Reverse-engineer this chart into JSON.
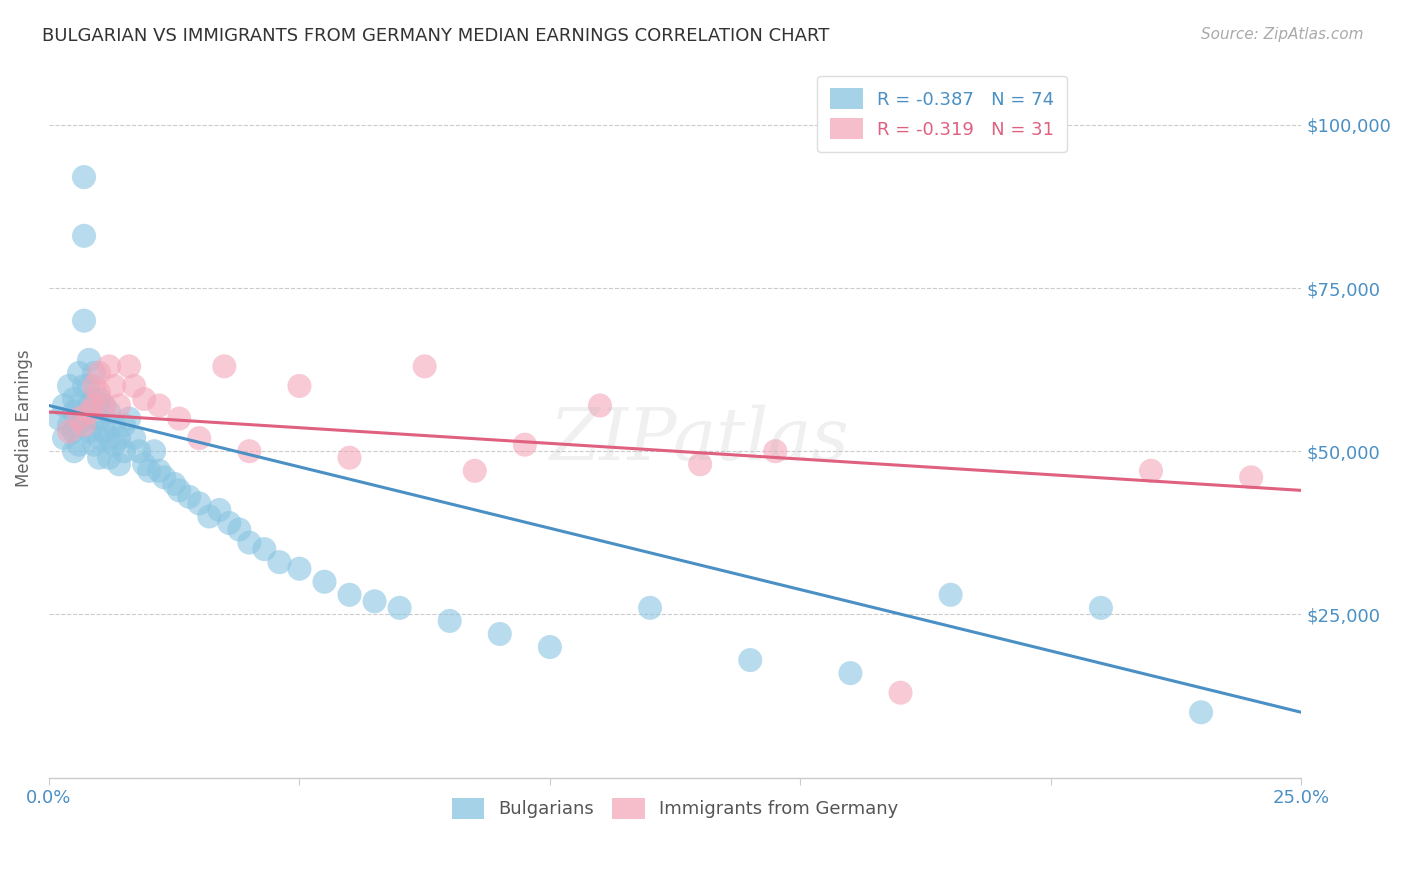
{
  "title": "BULGARIAN VS IMMIGRANTS FROM GERMANY MEDIAN EARNINGS CORRELATION CHART",
  "source": "Source: ZipAtlas.com",
  "ylabel": "Median Earnings",
  "watermark": "ZIPatlas",
  "xlim": [
    0.0,
    0.25
  ],
  "ylim": [
    0,
    110000
  ],
  "yticks": [
    0,
    25000,
    50000,
    75000,
    100000
  ],
  "ytick_labels_right": [
    "",
    "$25,000",
    "$50,000",
    "$75,000",
    "$100,000"
  ],
  "xticks": [
    0.0,
    0.05,
    0.1,
    0.15,
    0.2,
    0.25
  ],
  "xtick_labels": [
    "0.0%",
    "",
    "",
    "",
    "",
    "25.0%"
  ],
  "grid_color": "#cccccc",
  "background_color": "#ffffff",
  "blue_color": "#89c4e1",
  "pink_color": "#f4a7b9",
  "blue_line_color": "#4a90c4",
  "pink_line_color": "#e06080",
  "axis_color": "#4a90c4",
  "legend_blue_label": "R = -0.387   N = 74",
  "legend_pink_label": "R = -0.319   N = 31",
  "bulgarians_label": "Bulgarians",
  "immigrants_label": "Immigrants from Germany",
  "blue_scatter_x": [
    0.002,
    0.003,
    0.003,
    0.004,
    0.004,
    0.005,
    0.005,
    0.005,
    0.005,
    0.006,
    0.006,
    0.006,
    0.006,
    0.007,
    0.007,
    0.007,
    0.007,
    0.007,
    0.008,
    0.008,
    0.008,
    0.008,
    0.009,
    0.009,
    0.009,
    0.009,
    0.01,
    0.01,
    0.01,
    0.01,
    0.011,
    0.011,
    0.012,
    0.012,
    0.012,
    0.013,
    0.013,
    0.014,
    0.014,
    0.015,
    0.015,
    0.016,
    0.017,
    0.018,
    0.019,
    0.02,
    0.021,
    0.022,
    0.023,
    0.025,
    0.026,
    0.028,
    0.03,
    0.032,
    0.034,
    0.036,
    0.038,
    0.04,
    0.043,
    0.046,
    0.05,
    0.055,
    0.06,
    0.065,
    0.07,
    0.08,
    0.09,
    0.1,
    0.12,
    0.14,
    0.16,
    0.18,
    0.21,
    0.23
  ],
  "blue_scatter_y": [
    55000,
    57000,
    52000,
    60000,
    54000,
    58000,
    53000,
    56000,
    50000,
    62000,
    57000,
    54000,
    51000,
    92000,
    83000,
    70000,
    60000,
    55000,
    64000,
    60000,
    57000,
    53000,
    62000,
    58000,
    55000,
    51000,
    58000,
    55000,
    52000,
    49000,
    57000,
    53000,
    56000,
    52000,
    49000,
    54000,
    51000,
    52000,
    48000,
    54000,
    50000,
    55000,
    52000,
    50000,
    48000,
    47000,
    50000,
    47000,
    46000,
    45000,
    44000,
    43000,
    42000,
    40000,
    41000,
    39000,
    38000,
    36000,
    35000,
    33000,
    32000,
    30000,
    28000,
    27000,
    26000,
    24000,
    22000,
    20000,
    26000,
    18000,
    16000,
    28000,
    26000,
    10000
  ],
  "pink_scatter_x": [
    0.004,
    0.006,
    0.007,
    0.008,
    0.009,
    0.009,
    0.01,
    0.01,
    0.011,
    0.012,
    0.013,
    0.014,
    0.016,
    0.017,
    0.019,
    0.022,
    0.026,
    0.03,
    0.035,
    0.04,
    0.05,
    0.06,
    0.075,
    0.085,
    0.095,
    0.11,
    0.13,
    0.145,
    0.17,
    0.22,
    0.24
  ],
  "pink_scatter_y": [
    53000,
    55000,
    54000,
    56000,
    60000,
    57000,
    62000,
    59000,
    57000,
    63000,
    60000,
    57000,
    63000,
    60000,
    58000,
    57000,
    55000,
    52000,
    63000,
    50000,
    60000,
    49000,
    63000,
    47000,
    51000,
    57000,
    48000,
    50000,
    13000,
    47000,
    46000
  ],
  "blue_trend_x": [
    0.0,
    0.25
  ],
  "blue_trend_y": [
    57000,
    10000
  ],
  "pink_trend_x": [
    0.0,
    0.25
  ],
  "pink_trend_y": [
    56000,
    44000
  ]
}
